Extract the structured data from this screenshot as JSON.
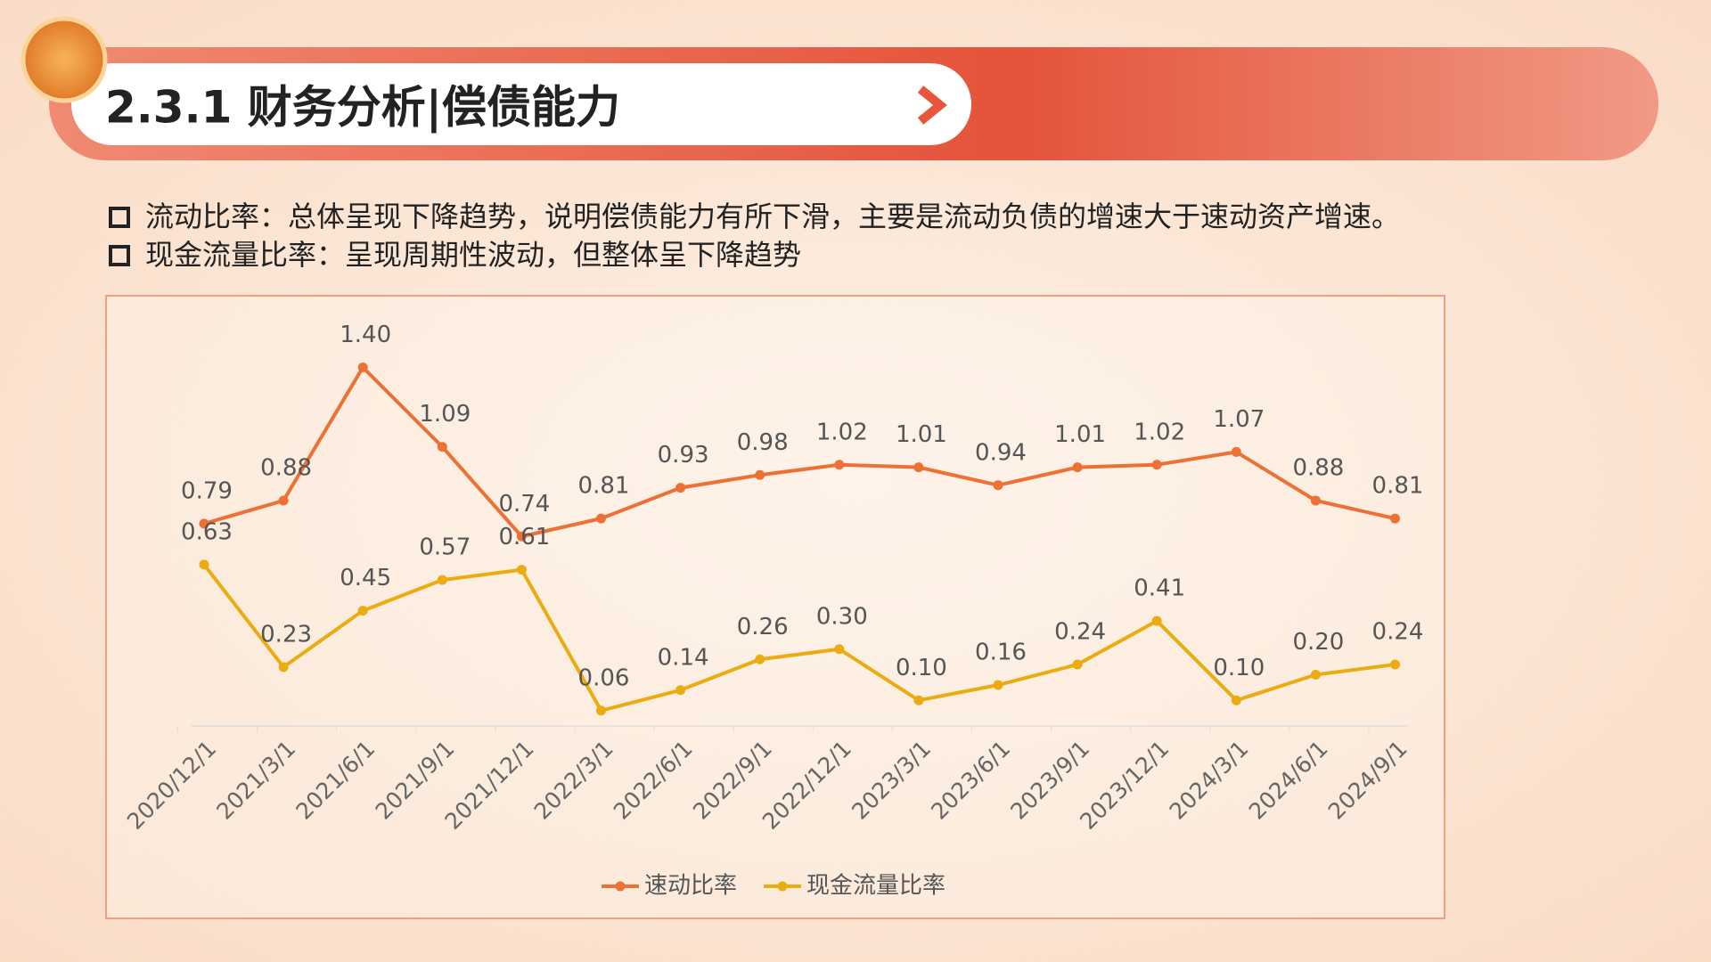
{
  "header": {
    "title": "2.3.1 财务分析|偿债能力"
  },
  "bullets": [
    "流动比率：总体呈现下降趋势，说明偿债能力有所下滑，主要是流动负债的增速大于速动资产增速。",
    "现金流量比率：呈现周期性波动，但整体呈下降趋势"
  ],
  "chart_data": {
    "type": "line",
    "categories": [
      "2020/12/1",
      "2021/3/1",
      "2021/6/1",
      "2021/9/1",
      "2021/12/1",
      "2022/3/1",
      "2022/6/1",
      "2022/9/1",
      "2022/12/1",
      "2023/3/1",
      "2023/6/1",
      "2023/9/1",
      "2023/12/1",
      "2024/3/1",
      "2024/6/1",
      "2024/9/1"
    ],
    "ylim": [
      0,
      1.6
    ],
    "series": [
      {
        "name": "速动比率",
        "color": "#ed7034",
        "values": [
          0.79,
          0.88,
          1.4,
          1.09,
          0.74,
          0.81,
          0.93,
          0.98,
          1.02,
          1.01,
          0.94,
          1.01,
          1.02,
          1.07,
          0.88,
          0.81
        ],
        "value_labels": [
          "0.79",
          "0.88",
          "1.40",
          "1.09",
          "0.74",
          "0.81",
          "0.93",
          "0.98",
          "1.02",
          "1.01",
          "0.94",
          "1.01",
          "1.02",
          "1.07",
          "0.88",
          "0.81"
        ]
      },
      {
        "name": "现金流量比率",
        "color": "#ebac12",
        "values": [
          0.63,
          0.23,
          0.45,
          0.57,
          0.61,
          0.06,
          0.14,
          0.26,
          0.3,
          0.1,
          0.16,
          0.24,
          0.41,
          0.1,
          0.2,
          0.24
        ],
        "value_labels": [
          "0.63",
          "0.23",
          "0.45",
          "0.57",
          "0.61",
          "0.06",
          "0.14",
          "0.26",
          "0.30",
          "0.10",
          "0.16",
          "0.24",
          "0.41",
          "0.10",
          "0.20",
          "0.24"
        ]
      }
    ],
    "legend": "bottom"
  }
}
